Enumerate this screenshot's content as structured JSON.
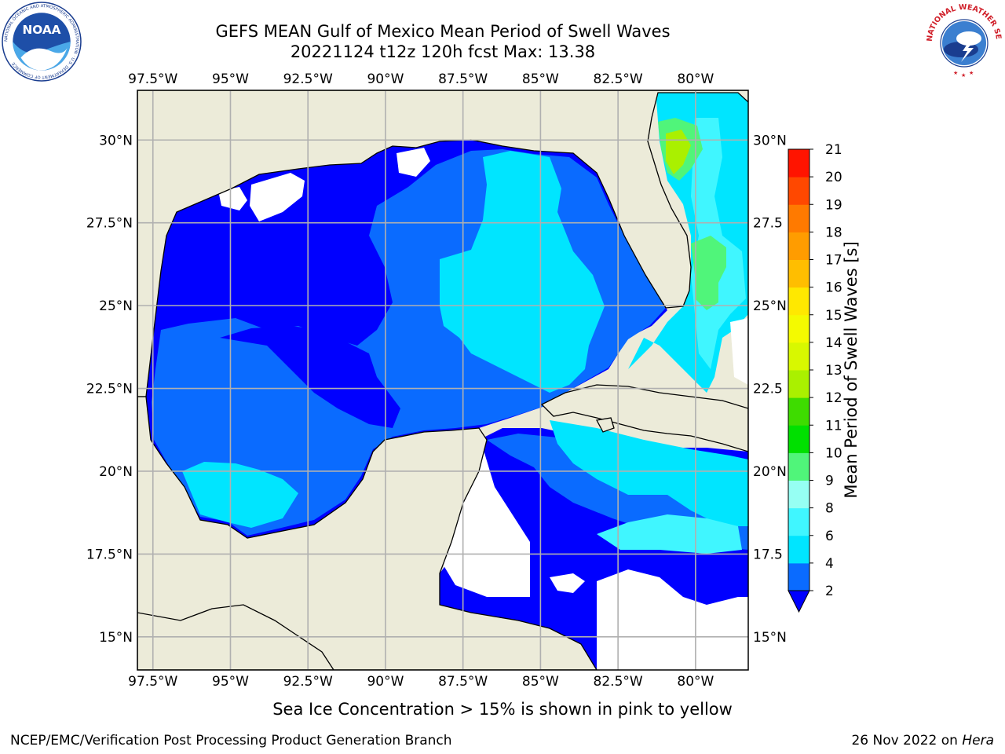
{
  "header": {
    "title_line1": "GEFS MEAN Gulf of Mexico Mean Period of Swell Waves",
    "title_line2": "20221124 t12z 120h fcst   Max: 13.38",
    "noaa_logo_text": "NOAA",
    "noaa_logo_ring_text": "NATIONAL OCEANIC AND ATMOSPHERIC ADMINISTRATION · U.S. DEPARTMENT OF COMMERCE",
    "nws_logo_ring_text": "NATIONAL WEATHER SERVICE"
  },
  "map": {
    "lon_labels": [
      "97.5°W",
      "95°W",
      "92.5°W",
      "90°W",
      "87.5°W",
      "85°W",
      "82.5°W",
      "80°W"
    ],
    "lat_labels_left": [
      "30°N",
      "27.5°N",
      "25°N",
      "22.5°N",
      "20°N",
      "17.5°N",
      "15°N"
    ],
    "lat_labels_right": [
      "30°N",
      "27.5",
      "25°N",
      "22.5",
      "20°N",
      "17.5",
      "15°N"
    ],
    "lon_range": [
      -98,
      -78.3
    ],
    "lat_range": [
      14,
      31.5
    ],
    "colors": {
      "land": "#ecebd9",
      "no_data": "#ffffff",
      "grid": "#b0b0b0"
    }
  },
  "colorbar": {
    "label": "Mean Period of Swell Waves [s]",
    "ticks": [
      "2",
      "4",
      "6",
      "8",
      "9",
      "10",
      "11",
      "12",
      "13",
      "14",
      "15",
      "16",
      "17",
      "18",
      "19",
      "20",
      "21"
    ],
    "under_color": "#0000ff",
    "levels": [
      {
        "lo": 2,
        "hi": 4,
        "color": "#0a6bff"
      },
      {
        "lo": 4,
        "hi": 6,
        "color": "#00e5ff"
      },
      {
        "lo": 6,
        "hi": 8,
        "color": "#40f6ff"
      },
      {
        "lo": 8,
        "hi": 9,
        "color": "#96fff3"
      },
      {
        "lo": 9,
        "hi": 10,
        "color": "#50f57a"
      },
      {
        "lo": 10,
        "hi": 11,
        "color": "#00e000"
      },
      {
        "lo": 11,
        "hi": 12,
        "color": "#3edc00"
      },
      {
        "lo": 12,
        "hi": 13,
        "color": "#aaf000"
      },
      {
        "lo": 13,
        "hi": 14,
        "color": "#d8f800"
      },
      {
        "lo": 14,
        "hi": 15,
        "color": "#f4fa00"
      },
      {
        "lo": 15,
        "hi": 16,
        "color": "#ffe800"
      },
      {
        "lo": 16,
        "hi": 17,
        "color": "#ffbe00"
      },
      {
        "lo": 17,
        "hi": 18,
        "color": "#ff9c00"
      },
      {
        "lo": 18,
        "hi": 19,
        "color": "#ff7a00"
      },
      {
        "lo": 19,
        "hi": 20,
        "color": "#ff4800"
      },
      {
        "lo": 20,
        "hi": 21,
        "color": "#ff1400"
      }
    ]
  },
  "notes": {
    "ice_note": "Sea Ice Concentration > 15% is shown in pink to yellow"
  },
  "footer": {
    "left": "NCEP/EMC/Verification Post Processing Product Generation Branch",
    "right_date": "26 Nov 2022 on",
    "right_host": "Hera"
  }
}
